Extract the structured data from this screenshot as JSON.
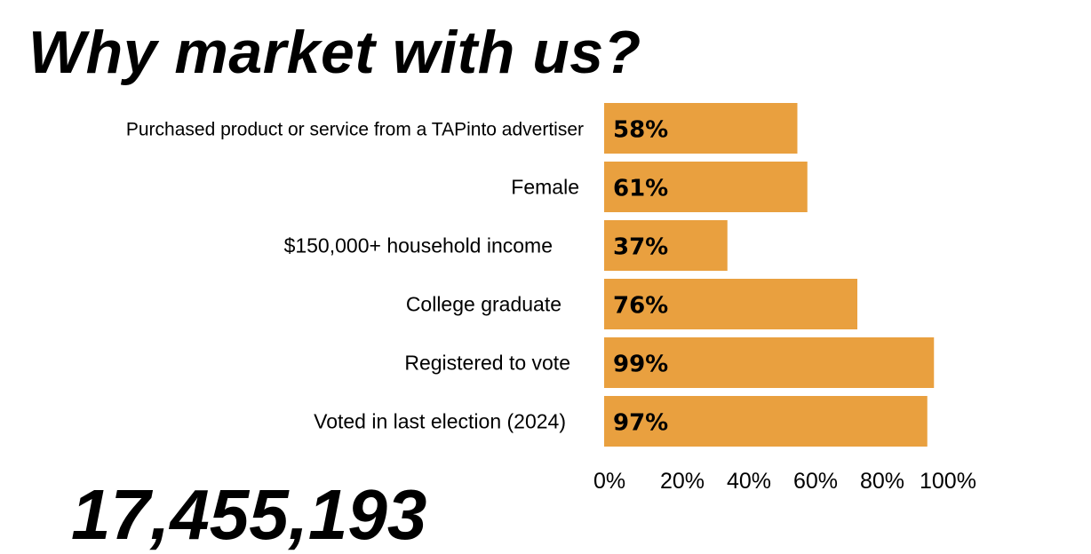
{
  "page": {
    "title": "Why market with us?",
    "footer_text": "17,455,193"
  },
  "chart_data": {
    "type": "bar",
    "orientation": "horizontal",
    "title": "Why market with us?",
    "xlabel": "",
    "ylabel": "",
    "categories": [
      "Purchased product or service from a TAPinto advertiser",
      "Female",
      "$150,000+ household income",
      "College graduate",
      "Registered to vote",
      "Voted in last election (2024)"
    ],
    "values": [
      58,
      61,
      37,
      76,
      99,
      97
    ],
    "value_labels": [
      "58%",
      "61%",
      "37%",
      "76%",
      "99%",
      "97%"
    ],
    "xlim": [
      0,
      100
    ],
    "x_ticks": [
      0,
      20,
      40,
      60,
      80,
      100
    ],
    "x_tick_labels": [
      "0%",
      "20%",
      "40%",
      "60%",
      "80%",
      "100%"
    ],
    "bar_color": "#E9A03F",
    "grid": false,
    "legend": "none"
  }
}
